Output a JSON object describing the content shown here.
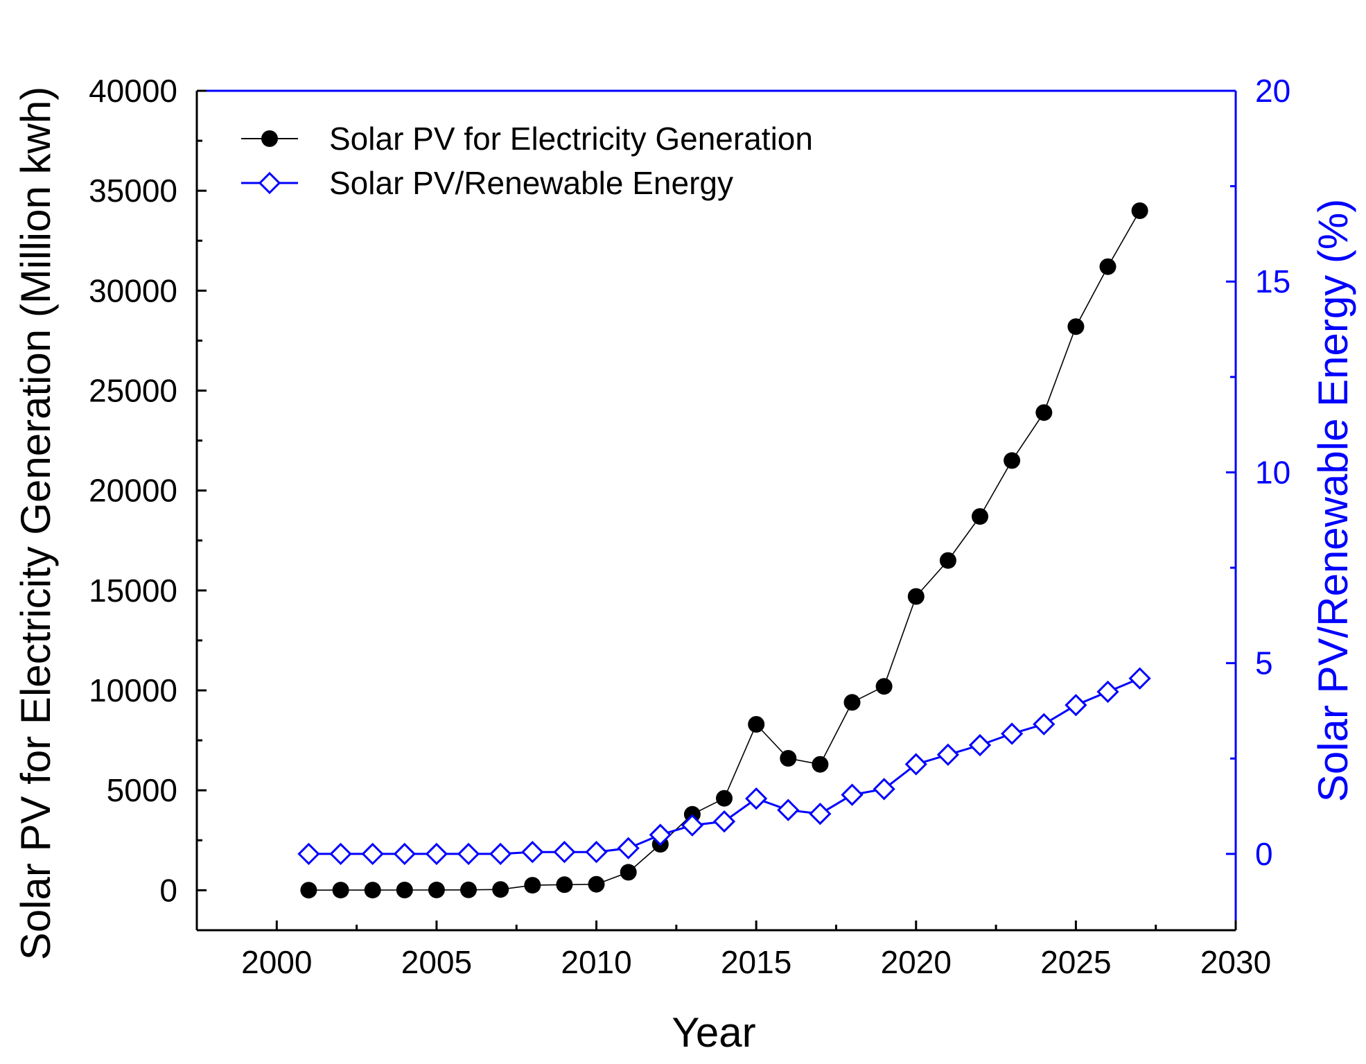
{
  "chart_data": {
    "type": "line",
    "xlabel": "Year",
    "ylabel_left": "Solar PV for Electricity Generation (Million kwh)",
    "ylabel_right": "Solar PV/Renewable Energy (%)",
    "xlim": [
      1997.5,
      2030
    ],
    "ylim_left": [
      -2000,
      40000
    ],
    "ylim_right": [
      -2,
      20
    ],
    "x_ticks": [
      2000,
      2005,
      2010,
      2015,
      2020,
      2025,
      2030
    ],
    "x_tick_labels": [
      "2000",
      "2005",
      "2010",
      "2015",
      "2020",
      "2025",
      "2030"
    ],
    "y_left_ticks": [
      0,
      5000,
      10000,
      15000,
      20000,
      25000,
      30000,
      35000,
      40000
    ],
    "y_left_tick_labels": [
      "0",
      "5000",
      "10000",
      "15000",
      "20000",
      "25000",
      "30000",
      "35000",
      "40000"
    ],
    "y_right_ticks": [
      0,
      5,
      10,
      15,
      20
    ],
    "y_right_tick_labels": [
      "0",
      "5",
      "10",
      "15",
      "20"
    ],
    "colors": {
      "left_axis": "#000000",
      "right_axis": "#0000ff"
    },
    "x": [
      2001,
      2002,
      2003,
      2004,
      2005,
      2006,
      2007,
      2008,
      2009,
      2010,
      2011,
      2012,
      2013,
      2014,
      2015,
      2016,
      2017,
      2018,
      2019,
      2020,
      2021,
      2022,
      2023,
      2024,
      2025,
      2026,
      2027
    ],
    "series": [
      {
        "name": "Solar PV for Electricity Generation",
        "axis": "left",
        "color": "#000000",
        "marker": "filled-circle",
        "values": [
          5,
          7,
          9,
          11,
          14,
          20,
          40,
          250,
          280,
          300,
          900,
          2300,
          3800,
          4600,
          8300,
          6600,
          6300,
          9400,
          10200,
          14700,
          16500,
          18700,
          21500,
          23900,
          28200,
          31200,
          34000
        ]
      },
      {
        "name": "Solar PV/Renewable Energy",
        "axis": "right",
        "color": "#0000ff",
        "marker": "open-diamond",
        "values": [
          0.0,
          0.0,
          0.0,
          0.0,
          0.0,
          0.0,
          0.0,
          0.05,
          0.05,
          0.05,
          0.15,
          0.5,
          0.75,
          0.85,
          1.45,
          1.15,
          1.05,
          1.55,
          1.7,
          2.35,
          2.6,
          2.85,
          3.15,
          3.4,
          3.9,
          4.25,
          4.6
        ]
      }
    ]
  }
}
